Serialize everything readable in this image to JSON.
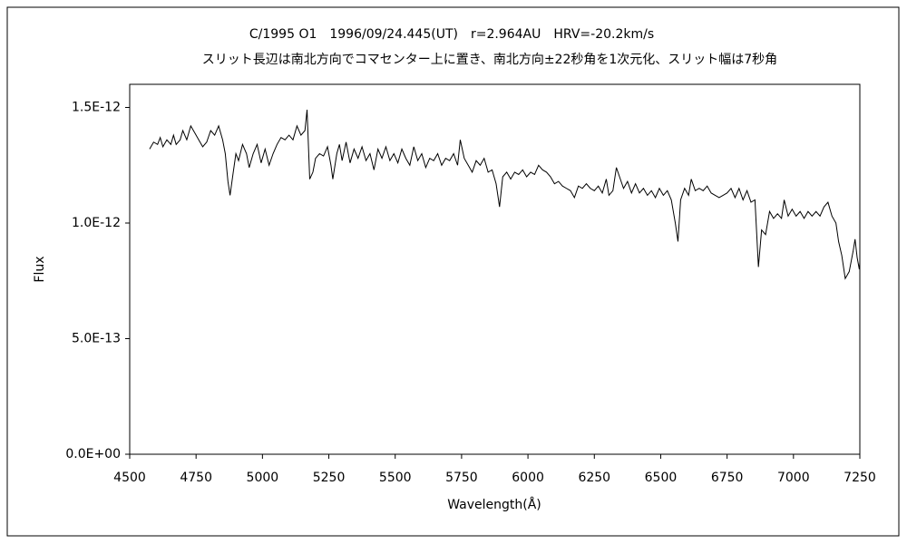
{
  "chart_data": {
    "type": "line",
    "title": "C/1995 O1　1996/09/24.445(UT)　r=2.964AU　HRV=-20.2km/s",
    "subtitle": "スリット長辺は南北方向でコマセンター上に置き、南北方向±22秒角を1次元化、スリット幅は7秒角",
    "xlabel": "Wavelength(Å)",
    "ylabel": "Flux",
    "xlim": [
      4500,
      7250
    ],
    "xticks": [
      4500,
      4750,
      5000,
      5250,
      5500,
      5750,
      6000,
      6250,
      6500,
      6750,
      7000,
      7250
    ],
    "ylim": [
      0,
      1.6e-12
    ],
    "yticks": [
      {
        "value": 0,
        "label": "0.0E+00"
      },
      {
        "value": 5e-13,
        "label": "5.0E-13"
      },
      {
        "value": 1e-12,
        "label": "1.0E-12"
      },
      {
        "value": 1.5e-12,
        "label": "1.5E-12"
      }
    ],
    "series": [
      {
        "color": "#000000",
        "x": [
          4575,
          4590,
          4605,
          4615,
          4625,
          4640,
          4655,
          4665,
          4675,
          4690,
          4700,
          4715,
          4730,
          4745,
          4760,
          4775,
          4790,
          4805,
          4820,
          4835,
          4850,
          4860,
          4870,
          4878,
          4890,
          4900,
          4910,
          4925,
          4940,
          4950,
          4965,
          4980,
          4995,
          5010,
          5025,
          5040,
          5055,
          5070,
          5085,
          5100,
          5115,
          5130,
          5145,
          5160,
          5168,
          5178,
          5190,
          5200,
          5215,
          5230,
          5245,
          5258,
          5265,
          5280,
          5290,
          5300,
          5315,
          5330,
          5345,
          5360,
          5375,
          5390,
          5405,
          5420,
          5435,
          5450,
          5465,
          5480,
          5495,
          5510,
          5525,
          5540,
          5555,
          5570,
          5585,
          5600,
          5615,
          5630,
          5645,
          5660,
          5675,
          5690,
          5705,
          5720,
          5735,
          5745,
          5760,
          5775,
          5790,
          5805,
          5820,
          5835,
          5850,
          5865,
          5880,
          5893,
          5905,
          5920,
          5935,
          5950,
          5965,
          5980,
          5995,
          6010,
          6025,
          6040,
          6055,
          6070,
          6085,
          6100,
          6115,
          6130,
          6145,
          6160,
          6175,
          6190,
          6205,
          6220,
          6235,
          6250,
          6265,
          6280,
          6295,
          6305,
          6320,
          6333,
          6345,
          6360,
          6375,
          6390,
          6405,
          6420,
          6435,
          6450,
          6465,
          6480,
          6495,
          6510,
          6525,
          6540,
          6555,
          6565,
          6575,
          6590,
          6605,
          6615,
          6630,
          6645,
          6660,
          6675,
          6690,
          6705,
          6720,
          6735,
          6750,
          6765,
          6780,
          6795,
          6810,
          6825,
          6840,
          6855,
          6868,
          6880,
          6895,
          6910,
          6925,
          6940,
          6955,
          6965,
          6980,
          6995,
          7010,
          7025,
          7040,
          7055,
          7070,
          7085,
          7100,
          7115,
          7130,
          7145,
          7160,
          7170,
          7182,
          7195,
          7210,
          7225,
          7232,
          7240,
          7248,
          7250
        ],
        "values": [
          1.32e-12,
          1.35e-12,
          1.34e-12,
          1.37e-12,
          1.33e-12,
          1.36e-12,
          1.34e-12,
          1.38e-12,
          1.34e-12,
          1.36e-12,
          1.4e-12,
          1.36e-12,
          1.42e-12,
          1.39e-12,
          1.36e-12,
          1.33e-12,
          1.35e-12,
          1.4e-12,
          1.38e-12,
          1.42e-12,
          1.36e-12,
          1.3e-12,
          1.18e-12,
          1.12e-12,
          1.22e-12,
          1.3e-12,
          1.27e-12,
          1.34e-12,
          1.3e-12,
          1.24e-12,
          1.3e-12,
          1.34e-12,
          1.26e-12,
          1.32e-12,
          1.25e-12,
          1.3e-12,
          1.34e-12,
          1.37e-12,
          1.36e-12,
          1.38e-12,
          1.36e-12,
          1.42e-12,
          1.38e-12,
          1.4e-12,
          1.49e-12,
          1.19e-12,
          1.22e-12,
          1.28e-12,
          1.3e-12,
          1.29e-12,
          1.33e-12,
          1.25e-12,
          1.19e-12,
          1.3e-12,
          1.34e-12,
          1.27e-12,
          1.35e-12,
          1.26e-12,
          1.32e-12,
          1.28e-12,
          1.33e-12,
          1.27e-12,
          1.3e-12,
          1.23e-12,
          1.32e-12,
          1.28e-12,
          1.33e-12,
          1.27e-12,
          1.3e-12,
          1.26e-12,
          1.32e-12,
          1.28e-12,
          1.25e-12,
          1.33e-12,
          1.27e-12,
          1.3e-12,
          1.24e-12,
          1.28e-12,
          1.27e-12,
          1.3e-12,
          1.25e-12,
          1.28e-12,
          1.27e-12,
          1.3e-12,
          1.25e-12,
          1.36e-12,
          1.28e-12,
          1.25e-12,
          1.22e-12,
          1.27e-12,
          1.25e-12,
          1.28e-12,
          1.22e-12,
          1.23e-12,
          1.17e-12,
          1.07e-12,
          1.2e-12,
          1.22e-12,
          1.19e-12,
          1.22e-12,
          1.21e-12,
          1.23e-12,
          1.2e-12,
          1.22e-12,
          1.21e-12,
          1.25e-12,
          1.23e-12,
          1.22e-12,
          1.2e-12,
          1.17e-12,
          1.18e-12,
          1.16e-12,
          1.15e-12,
          1.14e-12,
          1.11e-12,
          1.16e-12,
          1.15e-12,
          1.17e-12,
          1.15e-12,
          1.14e-12,
          1.16e-12,
          1.13e-12,
          1.19e-12,
          1.12e-12,
          1.14e-12,
          1.24e-12,
          1.2e-12,
          1.15e-12,
          1.18e-12,
          1.13e-12,
          1.17e-12,
          1.13e-12,
          1.15e-12,
          1.12e-12,
          1.14e-12,
          1.11e-12,
          1.15e-12,
          1.12e-12,
          1.14e-12,
          1.1e-12,
          1e-12,
          9.2e-13,
          1.1e-12,
          1.15e-12,
          1.12e-12,
          1.19e-12,
          1.14e-12,
          1.15e-12,
          1.14e-12,
          1.16e-12,
          1.13e-12,
          1.12e-12,
          1.11e-12,
          1.12e-12,
          1.13e-12,
          1.15e-12,
          1.11e-12,
          1.15e-12,
          1.1e-12,
          1.14e-12,
          1.09e-12,
          1.1e-12,
          8.1e-13,
          9.7e-13,
          9.5e-13,
          1.05e-12,
          1.02e-12,
          1.04e-12,
          1.02e-12,
          1.1e-12,
          1.03e-12,
          1.06e-12,
          1.03e-12,
          1.05e-12,
          1.02e-12,
          1.05e-12,
          1.03e-12,
          1.05e-12,
          1.03e-12,
          1.07e-12,
          1.09e-12,
          1.03e-12,
          1e-12,
          9.2e-13,
          8.6e-13,
          7.6e-13,
          7.9e-13,
          8.8e-13,
          9.3e-13,
          8.5e-13,
          8e-13,
          8.3e-13
        ]
      }
    ]
  }
}
